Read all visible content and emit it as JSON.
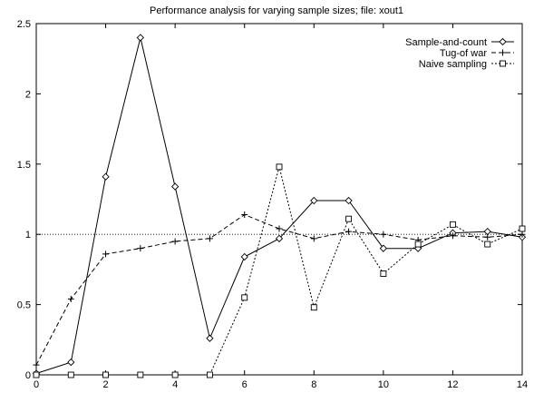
{
  "chart_data": {
    "type": "line",
    "title": "Performance analysis for varying sample sizes; file: xout1",
    "xlabel": "",
    "ylabel": "",
    "xlim": [
      0,
      14
    ],
    "ylim": [
      0,
      2.5
    ],
    "x_ticks": [
      0,
      2,
      4,
      6,
      8,
      10,
      12,
      14
    ],
    "y_ticks": [
      0,
      0.5,
      1,
      1.5,
      2,
      2.5
    ],
    "x_tick_labels": [
      "0",
      "2",
      "4",
      "6",
      "8",
      "10",
      "12",
      "14"
    ],
    "y_tick_labels": [
      "0",
      "0.5",
      "1",
      "1.5",
      "2",
      "2.5"
    ],
    "reference_line": 1,
    "grid": false,
    "legend_position": "top-right",
    "series": [
      {
        "name": "Sample-and-count",
        "style": "solid",
        "marker": "diamond",
        "x": [
          0,
          1,
          2,
          3,
          4,
          5,
          6,
          7,
          8,
          9,
          10,
          11,
          12,
          13,
          14
        ],
        "y": [
          0.01,
          0.09,
          1.41,
          2.4,
          1.34,
          0.26,
          0.84,
          0.97,
          1.24,
          1.24,
          0.9,
          0.9,
          1.01,
          1.02,
          0.98
        ]
      },
      {
        "name": "Tug-of war",
        "style": "dashed",
        "marker": "plus",
        "x": [
          0,
          1,
          2,
          3,
          4,
          5,
          6,
          7,
          8,
          9,
          10,
          11,
          12,
          13,
          14
        ],
        "y": [
          0.07,
          0.54,
          0.86,
          0.9,
          0.95,
          0.97,
          1.14,
          1.04,
          0.97,
          1.02,
          1.0,
          0.96,
          0.99,
          0.98,
          1.0
        ]
      },
      {
        "name": "Naive sampling",
        "style": "dotted",
        "marker": "square",
        "x": [
          0,
          1,
          2,
          3,
          4,
          5,
          6,
          7,
          8,
          9,
          10,
          11,
          12,
          13,
          14
        ],
        "y": [
          0,
          0,
          0,
          0,
          0,
          0,
          0.55,
          1.48,
          0.48,
          1.11,
          0.72,
          0.93,
          1.07,
          0.93,
          1.04
        ]
      }
    ]
  }
}
